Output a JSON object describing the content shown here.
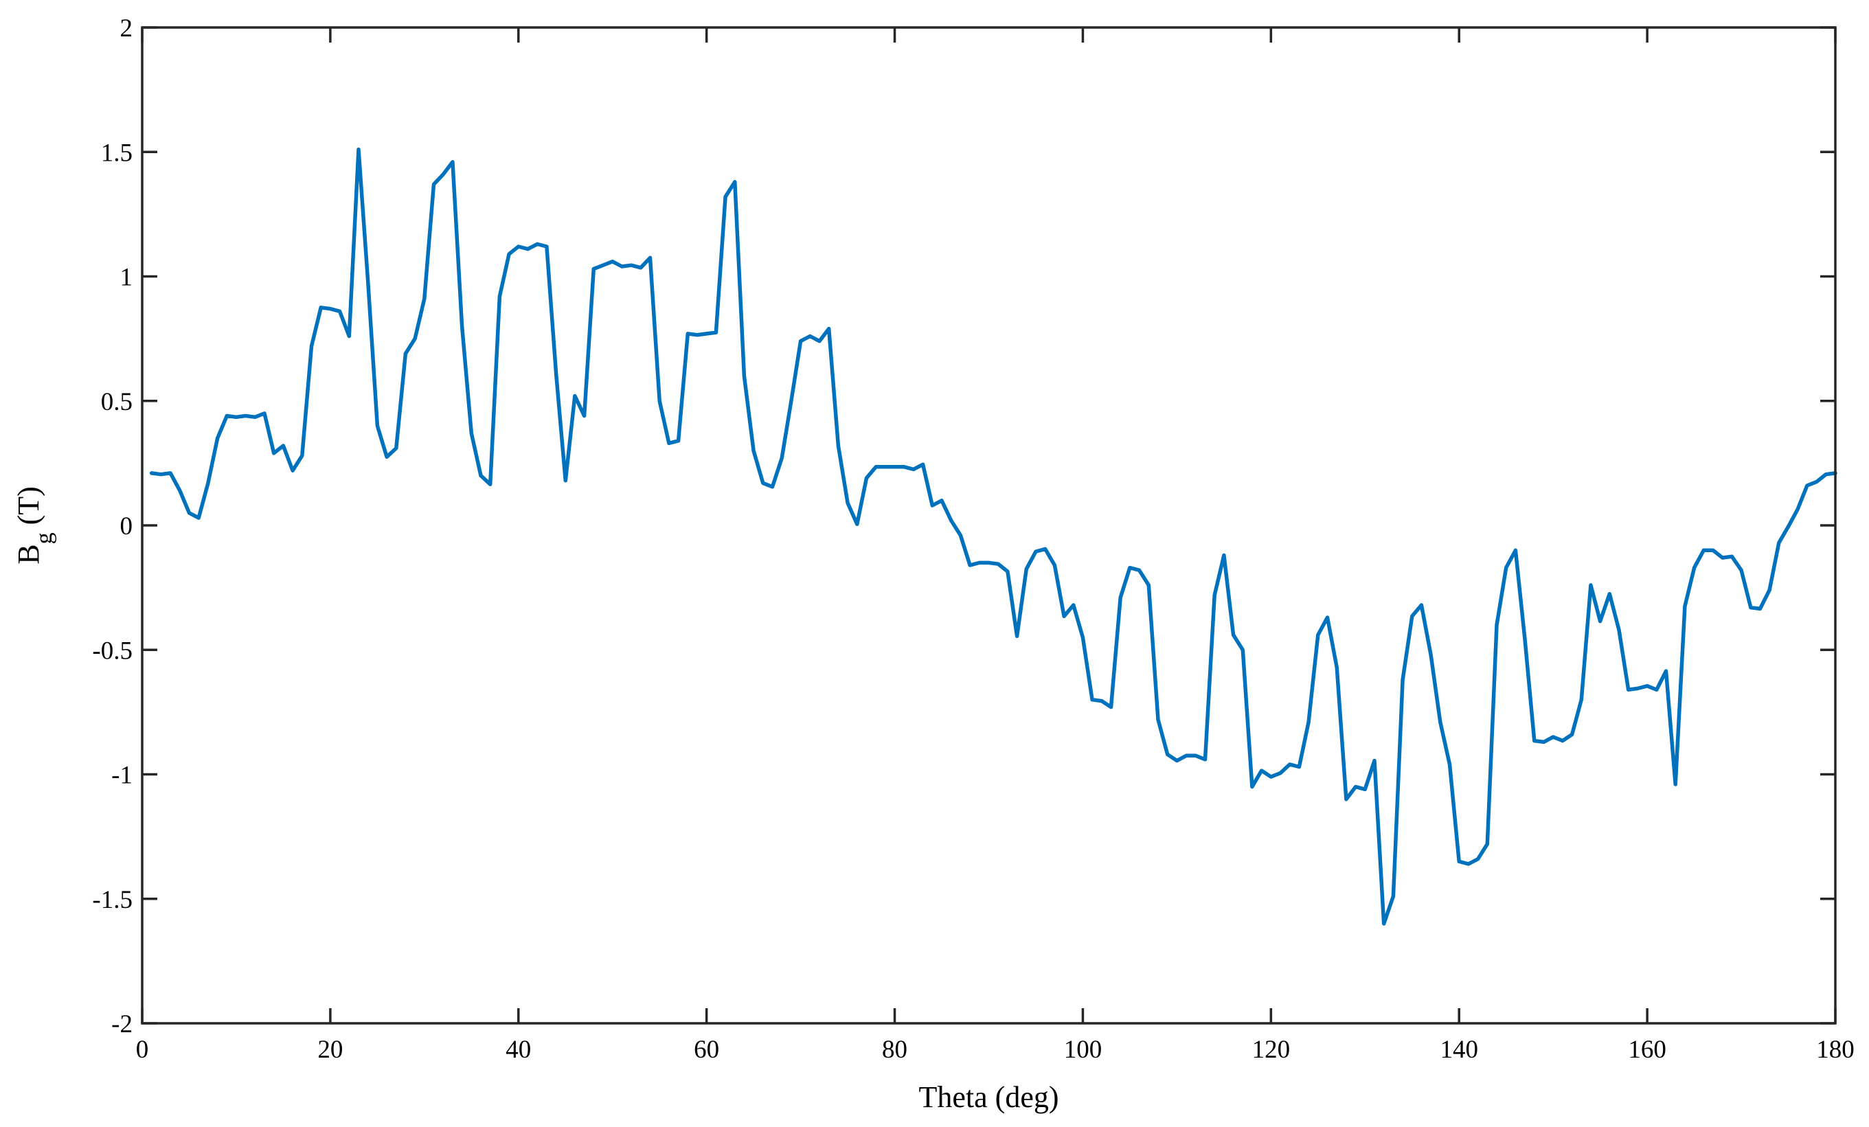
{
  "chart_data": {
    "type": "line",
    "xlabel": "Theta (deg)",
    "ylabel_main": "B",
    "ylabel_sub": "g",
    "ylabel_unit": " (T)",
    "xlim": [
      0,
      180
    ],
    "ylim": [
      -2,
      2
    ],
    "xticks": [
      0,
      20,
      40,
      60,
      80,
      100,
      120,
      140,
      160,
      180
    ],
    "yticks": [
      -2,
      -1.5,
      -1,
      -0.5,
      0,
      0.5,
      1,
      1.5,
      2
    ],
    "grid": false,
    "line_color": "#0072BD",
    "series": [
      {
        "x": [
          1,
          2,
          3,
          4,
          5,
          6,
          7,
          8,
          9,
          10,
          11,
          12,
          13,
          14,
          15,
          16,
          17,
          18,
          19,
          20,
          21,
          22,
          23,
          24,
          25,
          26,
          27,
          28,
          29,
          30,
          31,
          32,
          33,
          34,
          35,
          36,
          37,
          38,
          39,
          40,
          41,
          42,
          43,
          44,
          45,
          46,
          47,
          48,
          49,
          50,
          51,
          52,
          53,
          54,
          55,
          56,
          57,
          58,
          59,
          60,
          61,
          62,
          63,
          64,
          65,
          66,
          67,
          68,
          69,
          70,
          71,
          72,
          73,
          74,
          75,
          76,
          77,
          78,
          79,
          80,
          81,
          82,
          83,
          84,
          85,
          86,
          87,
          88,
          89,
          90,
          91,
          92,
          93,
          94,
          95,
          96,
          97,
          98,
          99,
          100,
          101,
          102,
          103,
          104,
          105,
          106,
          107,
          108,
          109,
          110,
          111,
          112,
          113,
          114,
          115,
          116,
          117,
          118,
          119,
          120,
          121,
          122,
          123,
          124,
          125,
          126,
          127,
          128,
          129,
          130,
          131,
          132,
          133,
          134,
          135,
          136,
          137,
          138,
          139,
          140,
          141,
          142,
          143,
          144,
          145,
          146,
          147,
          148,
          149,
          150,
          151,
          152,
          153,
          154,
          155,
          156,
          157,
          158,
          159,
          160,
          161,
          162,
          163,
          164,
          165,
          166,
          167,
          168,
          169,
          170,
          171,
          172,
          173,
          174,
          175,
          176,
          177,
          178,
          179,
          180
        ],
        "y": [
          0.21,
          0.205,
          0.21,
          0.14,
          0.05,
          0.03,
          0.17,
          0.35,
          0.44,
          0.435,
          0.44,
          0.435,
          0.45,
          0.29,
          0.32,
          0.22,
          0.28,
          0.72,
          0.875,
          0.87,
          0.86,
          0.76,
          1.51,
          0.98,
          0.4,
          0.275,
          0.31,
          0.69,
          0.75,
          0.91,
          1.37,
          1.41,
          1.46,
          0.8,
          0.37,
          0.2,
          0.165,
          0.92,
          1.09,
          1.12,
          1.11,
          1.13,
          1.12,
          0.61,
          0.18,
          0.52,
          0.44,
          1.03,
          1.045,
          1.06,
          1.04,
          1.045,
          1.035,
          1.075,
          0.5,
          0.33,
          0.34,
          0.77,
          0.765,
          0.77,
          0.775,
          1.32,
          1.38,
          0.6,
          0.3,
          0.17,
          0.155,
          0.27,
          0.5,
          0.74,
          0.76,
          0.74,
          0.79,
          0.32,
          0.09,
          0.005,
          0.19,
          0.235,
          0.235,
          0.235,
          0.235,
          0.225,
          0.245,
          0.08,
          0.1,
          0.02,
          -0.04,
          -0.16,
          -0.15,
          -0.15,
          -0.155,
          -0.185,
          -0.445,
          -0.175,
          -0.105,
          -0.095,
          -0.16,
          -0.365,
          -0.32,
          -0.45,
          -0.7,
          -0.705,
          -0.73,
          -0.29,
          -0.17,
          -0.18,
          -0.24,
          -0.78,
          -0.92,
          -0.945,
          -0.925,
          -0.925,
          -0.94,
          -0.28,
          -0.12,
          -0.44,
          -0.5,
          -1.05,
          -0.985,
          -1.01,
          -0.995,
          -0.96,
          -0.97,
          -0.79,
          -0.44,
          -0.37,
          -0.57,
          -1.1,
          -1.05,
          -1.06,
          -0.945,
          -1.6,
          -1.49,
          -0.62,
          -0.365,
          -0.32,
          -0.52,
          -0.79,
          -0.96,
          -1.35,
          -1.36,
          -1.34,
          -1.28,
          -0.4,
          -0.17,
          -0.1,
          -0.46,
          -0.865,
          -0.87,
          -0.85,
          -0.865,
          -0.84,
          -0.7,
          -0.24,
          -0.385,
          -0.275,
          -0.42,
          -0.66,
          -0.655,
          -0.645,
          -0.66,
          -0.585,
          -1.04,
          -0.325,
          -0.17,
          -0.1,
          -0.1,
          -0.13,
          -0.125,
          -0.18,
          -0.33,
          -0.335,
          -0.26,
          -0.07,
          -0.005,
          0.065,
          0.16,
          0.175,
          0.205,
          0.21
        ]
      }
    ]
  }
}
